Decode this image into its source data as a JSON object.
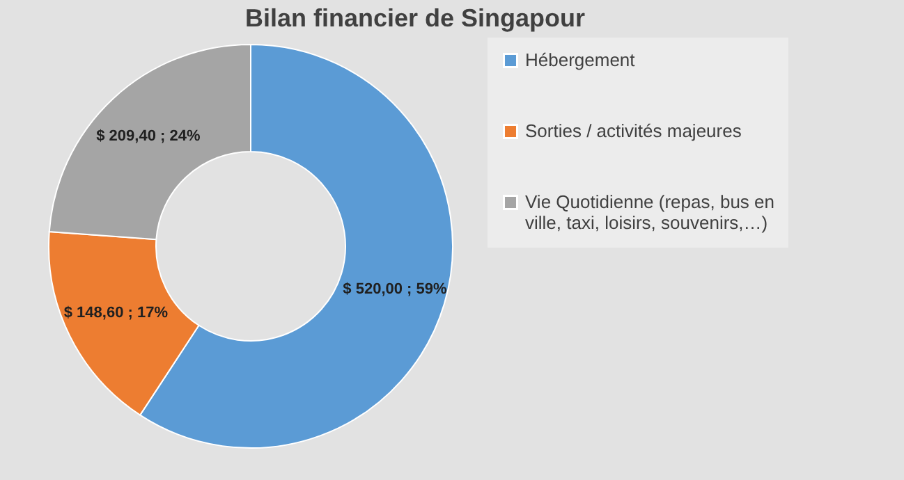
{
  "chart_data": {
    "type": "donut",
    "title": "Bilan financier de Singapour",
    "categories": [
      "Hébergement",
      "Sorties / activités majeures",
      "Vie Quotidienne (repas, bus en ville, taxi, loisirs, souvenirs,…)"
    ],
    "values": [
      520.0,
      148.6,
      209.4
    ],
    "colors": [
      "#5b9bd5",
      "#ed7d31",
      "#a5a5a5"
    ],
    "value_labels": [
      "$ 520,00 ; 59%",
      "$ 148,60 ; 17%",
      "$ 209,40 ; 24%"
    ],
    "legend": "right"
  }
}
